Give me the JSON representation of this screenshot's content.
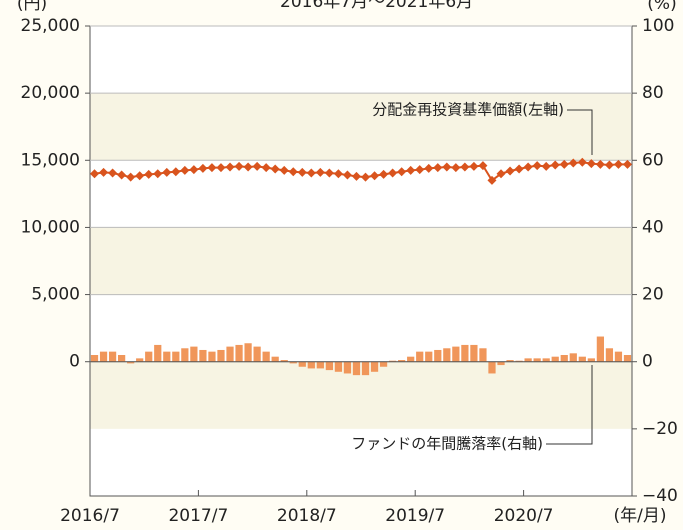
{
  "chart_data": {
    "type": "bar-line",
    "title": "2016年7月～2021年6月",
    "ylabel": "(円)",
    "y2label": "(%)",
    "xlabel": "(年/月)",
    "categories": [
      "2016/7",
      null,
      null,
      null,
      null,
      null,
      null,
      null,
      null,
      null,
      null,
      null,
      "2017/7",
      null,
      null,
      null,
      null,
      null,
      null,
      null,
      null,
      null,
      null,
      null,
      "2018/7",
      null,
      null,
      null,
      null,
      null,
      null,
      null,
      null,
      null,
      null,
      null,
      "2019/7",
      null,
      null,
      null,
      null,
      null,
      null,
      null,
      null,
      null,
      null,
      null,
      "2020/7",
      null,
      null,
      null,
      null,
      null,
      null,
      null,
      null,
      null,
      null,
      null
    ],
    "series": [
      {
        "name": "分配金再投資基準価額(左軸)",
        "type": "line",
        "color": "#d9541e",
        "values": [
          14000,
          14100,
          14050,
          13900,
          13750,
          13850,
          13950,
          14000,
          14100,
          14150,
          14250,
          14300,
          14400,
          14450,
          14450,
          14500,
          14550,
          14500,
          14550,
          14450,
          14350,
          14250,
          14150,
          14100,
          14050,
          14100,
          14050,
          14000,
          13900,
          13800,
          13750,
          13850,
          13950,
          14050,
          14150,
          14250,
          14300,
          14400,
          14450,
          14500,
          14450,
          14500,
          14550,
          14600,
          13500,
          14000,
          14200,
          14350,
          14500,
          14600,
          14550,
          14650,
          14700,
          14800,
          14850,
          14750,
          14700,
          14650,
          14700,
          14700
        ]
      },
      {
        "name": "ファンドの年間騰落率(右軸)",
        "type": "bar",
        "axis": "y2",
        "color": "#f0965a",
        "values": [
          2,
          3,
          3,
          2,
          -0.5,
          1,
          3,
          5,
          3,
          3,
          4,
          4.5,
          3.5,
          3,
          3.5,
          4.5,
          5,
          5.5,
          4.5,
          3,
          1.5,
          0.5,
          -0.5,
          -1.5,
          -2,
          -2,
          -2.5,
          -3,
          -3.5,
          -4,
          -4,
          -3,
          -1.5,
          0.3,
          0.5,
          1.5,
          3,
          3,
          3.5,
          4,
          4.5,
          5,
          5,
          4,
          -3.5,
          -1,
          0.5,
          0.3,
          1,
          1,
          1,
          1.5,
          2,
          2.5,
          1.5,
          1,
          7.5,
          4,
          3,
          2
        ]
      }
    ],
    "ylim": [
      -10000,
      25000
    ],
    "yticks": [
      0,
      {
        "value": 5000,
        "label": "5,000"
      },
      {
        "value": 10000,
        "label": "10,000"
      },
      {
        "value": 15000,
        "label": "15,000"
      },
      {
        "value": 20000,
        "label": "20,000"
      },
      {
        "value": 25000,
        "label": "25,000"
      }
    ],
    "y2lim": [
      -40,
      100
    ],
    "y2ticks": [
      {
        "value": -40,
        "label": "−40"
      },
      {
        "value": -20,
        "label": "−20"
      },
      0,
      20,
      40,
      60,
      80,
      100
    ],
    "grid": true
  }
}
